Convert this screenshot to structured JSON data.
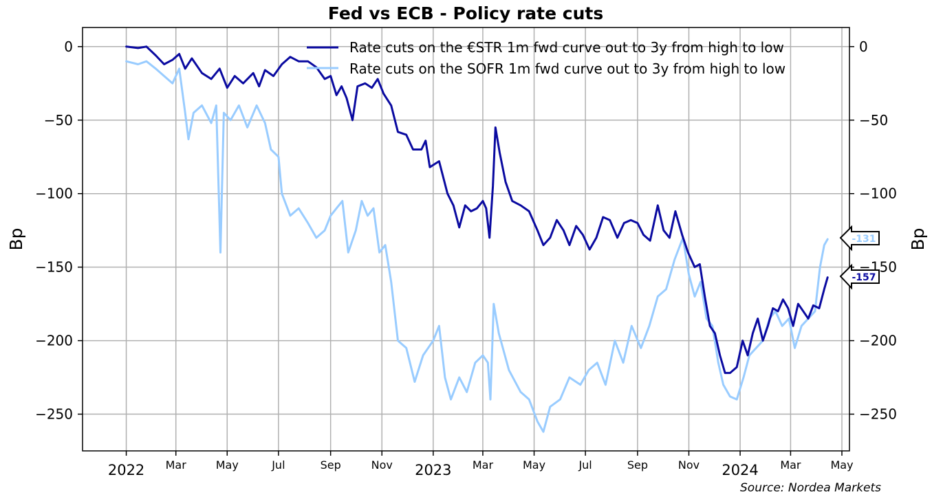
{
  "chart_data": {
    "type": "line",
    "title": "Fed vs ECB - Policy rate cuts",
    "ylabel_left": "Bp",
    "ylabel_right": "Bp",
    "source": "Source: Nordea Markets",
    "ylim": [
      -275,
      13
    ],
    "yticks": [
      0,
      -50,
      -100,
      -150,
      -200,
      -250
    ],
    "ytick_labels": [
      "0",
      "−50",
      "−100",
      "−150",
      "−200",
      "−250"
    ],
    "xlim": [
      "2021-11-10",
      "2024-05-10"
    ],
    "xticks": [
      {
        "date": "2022-01-01",
        "label": "2022",
        "major": true
      },
      {
        "date": "2022-03-01",
        "label": "Mar",
        "major": false
      },
      {
        "date": "2022-05-01",
        "label": "May",
        "major": false
      },
      {
        "date": "2022-07-01",
        "label": "Jul",
        "major": false
      },
      {
        "date": "2022-09-01",
        "label": "Sep",
        "major": false
      },
      {
        "date": "2022-11-01",
        "label": "Nov",
        "major": false
      },
      {
        "date": "2023-01-01",
        "label": "2023",
        "major": true
      },
      {
        "date": "2023-03-01",
        "label": "Mar",
        "major": false
      },
      {
        "date": "2023-05-01",
        "label": "May",
        "major": false
      },
      {
        "date": "2023-07-01",
        "label": "Jul",
        "major": false
      },
      {
        "date": "2023-09-01",
        "label": "Sep",
        "major": false
      },
      {
        "date": "2023-11-01",
        "label": "Nov",
        "major": false
      },
      {
        "date": "2024-01-01",
        "label": "2024",
        "major": true
      },
      {
        "date": "2024-03-01",
        "label": "Mar",
        "major": false
      },
      {
        "date": "2024-05-01",
        "label": "May",
        "major": false
      }
    ],
    "grid": true,
    "legend_position": "top-right",
    "series": [
      {
        "name": "Rate cuts on the €STR 1m fwd curve out to 3y from high to low",
        "color": "#0a0aa0",
        "end_label": "-157",
        "points": [
          [
            "2022-01-01",
            0
          ],
          [
            "2022-01-15",
            -1
          ],
          [
            "2022-01-25",
            0
          ],
          [
            "2022-02-05",
            -6
          ],
          [
            "2022-02-15",
            -12
          ],
          [
            "2022-02-25",
            -9
          ],
          [
            "2022-03-05",
            -5
          ],
          [
            "2022-03-12",
            -15
          ],
          [
            "2022-03-20",
            -8
          ],
          [
            "2022-04-01",
            -18
          ],
          [
            "2022-04-12",
            -22
          ],
          [
            "2022-04-22",
            -15
          ],
          [
            "2022-05-01",
            -28
          ],
          [
            "2022-05-10",
            -20
          ],
          [
            "2022-05-20",
            -25
          ],
          [
            "2022-06-01",
            -18
          ],
          [
            "2022-06-08",
            -27
          ],
          [
            "2022-06-15",
            -16
          ],
          [
            "2022-06-25",
            -20
          ],
          [
            "2022-07-05",
            -12
          ],
          [
            "2022-07-15",
            -7
          ],
          [
            "2022-07-25",
            -10
          ],
          [
            "2022-08-05",
            -10
          ],
          [
            "2022-08-15",
            -14
          ],
          [
            "2022-08-25",
            -22
          ],
          [
            "2022-09-01",
            -20
          ],
          [
            "2022-09-08",
            -33
          ],
          [
            "2022-09-14",
            -27
          ],
          [
            "2022-09-20",
            -35
          ],
          [
            "2022-09-27",
            -50
          ],
          [
            "2022-10-03",
            -27
          ],
          [
            "2022-10-12",
            -25
          ],
          [
            "2022-10-20",
            -28
          ],
          [
            "2022-10-27",
            -22
          ],
          [
            "2022-11-03",
            -32
          ],
          [
            "2022-11-12",
            -40
          ],
          [
            "2022-11-20",
            -58
          ],
          [
            "2022-11-30",
            -60
          ],
          [
            "2022-12-08",
            -70
          ],
          [
            "2022-12-18",
            -70
          ],
          [
            "2022-12-23",
            -64
          ],
          [
            "2022-12-28",
            -82
          ],
          [
            "2023-01-08",
            -78
          ],
          [
            "2023-01-18",
            -100
          ],
          [
            "2023-01-25",
            -108
          ],
          [
            "2023-02-01",
            -123
          ],
          [
            "2023-02-08",
            -108
          ],
          [
            "2023-02-15",
            -112
          ],
          [
            "2023-02-22",
            -110
          ],
          [
            "2023-03-01",
            -105
          ],
          [
            "2023-03-05",
            -110
          ],
          [
            "2023-03-09",
            -130
          ],
          [
            "2023-03-13",
            -95
          ],
          [
            "2023-03-16",
            -55
          ],
          [
            "2023-03-21",
            -72
          ],
          [
            "2023-03-28",
            -92
          ],
          [
            "2023-04-05",
            -105
          ],
          [
            "2023-04-15",
            -108
          ],
          [
            "2023-04-25",
            -112
          ],
          [
            "2023-05-05",
            -125
          ],
          [
            "2023-05-12",
            -135
          ],
          [
            "2023-05-20",
            -130
          ],
          [
            "2023-05-28",
            -118
          ],
          [
            "2023-06-05",
            -125
          ],
          [
            "2023-06-12",
            -135
          ],
          [
            "2023-06-20",
            -122
          ],
          [
            "2023-06-28",
            -128
          ],
          [
            "2023-07-06",
            -138
          ],
          [
            "2023-07-14",
            -130
          ],
          [
            "2023-07-22",
            -116
          ],
          [
            "2023-07-30",
            -118
          ],
          [
            "2023-08-08",
            -130
          ],
          [
            "2023-08-16",
            -120
          ],
          [
            "2023-08-24",
            -118
          ],
          [
            "2023-09-01",
            -120
          ],
          [
            "2023-09-08",
            -128
          ],
          [
            "2023-09-16",
            -132
          ],
          [
            "2023-09-25",
            -108
          ],
          [
            "2023-10-02",
            -125
          ],
          [
            "2023-10-09",
            -130
          ],
          [
            "2023-10-16",
            -112
          ],
          [
            "2023-10-24",
            -128
          ],
          [
            "2023-10-31",
            -140
          ],
          [
            "2023-11-08",
            -150
          ],
          [
            "2023-11-14",
            -148
          ],
          [
            "2023-11-20",
            -170
          ],
          [
            "2023-11-26",
            -190
          ],
          [
            "2023-12-02",
            -195
          ],
          [
            "2023-12-08",
            -210
          ],
          [
            "2023-12-14",
            -222
          ],
          [
            "2023-12-20",
            -222
          ],
          [
            "2023-12-28",
            -218
          ],
          [
            "2024-01-04",
            -200
          ],
          [
            "2024-01-10",
            -210
          ],
          [
            "2024-01-16",
            -195
          ],
          [
            "2024-01-22",
            -185
          ],
          [
            "2024-01-28",
            -200
          ],
          [
            "2024-02-03",
            -190
          ],
          [
            "2024-02-09",
            -178
          ],
          [
            "2024-02-15",
            -180
          ],
          [
            "2024-02-21",
            -172
          ],
          [
            "2024-02-27",
            -178
          ],
          [
            "2024-03-04",
            -190
          ],
          [
            "2024-03-10",
            -175
          ],
          [
            "2024-03-16",
            -180
          ],
          [
            "2024-03-22",
            -185
          ],
          [
            "2024-03-28",
            -176
          ],
          [
            "2024-04-04",
            -178
          ],
          [
            "2024-04-10",
            -165
          ],
          [
            "2024-04-14",
            -157
          ]
        ]
      },
      {
        "name": "Rate cuts on the SOFR 1m fwd curve out to 3y from high to low",
        "color": "#99ccff",
        "end_label": "-131",
        "points": [
          [
            "2022-01-01",
            -10
          ],
          [
            "2022-01-15",
            -12
          ],
          [
            "2022-01-25",
            -10
          ],
          [
            "2022-02-05",
            -15
          ],
          [
            "2022-02-15",
            -20
          ],
          [
            "2022-02-25",
            -25
          ],
          [
            "2022-03-05",
            -15
          ],
          [
            "2022-03-12",
            -45
          ],
          [
            "2022-03-16",
            -63
          ],
          [
            "2022-03-22",
            -45
          ],
          [
            "2022-04-01",
            -40
          ],
          [
            "2022-04-12",
            -52
          ],
          [
            "2022-04-18",
            -40
          ],
          [
            "2022-04-23",
            -140
          ],
          [
            "2022-04-27",
            -45
          ],
          [
            "2022-05-05",
            -50
          ],
          [
            "2022-05-15",
            -40
          ],
          [
            "2022-05-25",
            -55
          ],
          [
            "2022-06-05",
            -40
          ],
          [
            "2022-06-15",
            -52
          ],
          [
            "2022-06-22",
            -70
          ],
          [
            "2022-07-01",
            -75
          ],
          [
            "2022-07-05",
            -100
          ],
          [
            "2022-07-15",
            -115
          ],
          [
            "2022-07-25",
            -110
          ],
          [
            "2022-08-05",
            -120
          ],
          [
            "2022-08-15",
            -130
          ],
          [
            "2022-08-25",
            -125
          ],
          [
            "2022-09-01",
            -115
          ],
          [
            "2022-09-08",
            -110
          ],
          [
            "2022-09-15",
            -105
          ],
          [
            "2022-09-22",
            -140
          ],
          [
            "2022-10-01",
            -125
          ],
          [
            "2022-10-08",
            -105
          ],
          [
            "2022-10-15",
            -115
          ],
          [
            "2022-10-22",
            -110
          ],
          [
            "2022-10-29",
            -140
          ],
          [
            "2022-11-05",
            -135
          ],
          [
            "2022-11-12",
            -160
          ],
          [
            "2022-11-20",
            -200
          ],
          [
            "2022-11-30",
            -205
          ],
          [
            "2022-12-10",
            -228
          ],
          [
            "2022-12-20",
            -210
          ],
          [
            "2023-01-01",
            -200
          ],
          [
            "2023-01-08",
            -190
          ],
          [
            "2023-01-15",
            -225
          ],
          [
            "2023-01-22",
            -240
          ],
          [
            "2023-02-01",
            -225
          ],
          [
            "2023-02-10",
            -235
          ],
          [
            "2023-02-20",
            -215
          ],
          [
            "2023-03-01",
            -210
          ],
          [
            "2023-03-07",
            -215
          ],
          [
            "2023-03-10",
            -240
          ],
          [
            "2023-03-14",
            -175
          ],
          [
            "2023-03-20",
            -195
          ],
          [
            "2023-04-01",
            -220
          ],
          [
            "2023-04-15",
            -235
          ],
          [
            "2023-04-25",
            -240
          ],
          [
            "2023-05-05",
            -255
          ],
          [
            "2023-05-12",
            -262
          ],
          [
            "2023-05-20",
            -245
          ],
          [
            "2023-06-01",
            -240
          ],
          [
            "2023-06-12",
            -225
          ],
          [
            "2023-06-25",
            -230
          ],
          [
            "2023-07-05",
            -220
          ],
          [
            "2023-07-15",
            -215
          ],
          [
            "2023-07-25",
            -230
          ],
          [
            "2023-08-05",
            -200
          ],
          [
            "2023-08-15",
            -215
          ],
          [
            "2023-08-25",
            -190
          ],
          [
            "2023-09-05",
            -205
          ],
          [
            "2023-09-15",
            -190
          ],
          [
            "2023-09-25",
            -170
          ],
          [
            "2023-10-05",
            -165
          ],
          [
            "2023-10-15",
            -145
          ],
          [
            "2023-10-25",
            -130
          ],
          [
            "2023-11-01",
            -155
          ],
          [
            "2023-11-08",
            -170
          ],
          [
            "2023-11-15",
            -160
          ],
          [
            "2023-11-22",
            -185
          ],
          [
            "2023-11-29",
            -190
          ],
          [
            "2023-12-06",
            -215
          ],
          [
            "2023-12-12",
            -230
          ],
          [
            "2023-12-20",
            -238
          ],
          [
            "2023-12-28",
            -240
          ],
          [
            "2024-01-05",
            -225
          ],
          [
            "2024-01-12",
            -210
          ],
          [
            "2024-01-20",
            -205
          ],
          [
            "2024-01-28",
            -200
          ],
          [
            "2024-02-05",
            -185
          ],
          [
            "2024-02-12",
            -180
          ],
          [
            "2024-02-20",
            -190
          ],
          [
            "2024-02-28",
            -185
          ],
          [
            "2024-03-06",
            -205
          ],
          [
            "2024-03-14",
            -190
          ],
          [
            "2024-03-22",
            -185
          ],
          [
            "2024-03-30",
            -180
          ],
          [
            "2024-04-05",
            -150
          ],
          [
            "2024-04-10",
            -135
          ],
          [
            "2024-04-14",
            -131
          ]
        ]
      }
    ]
  }
}
